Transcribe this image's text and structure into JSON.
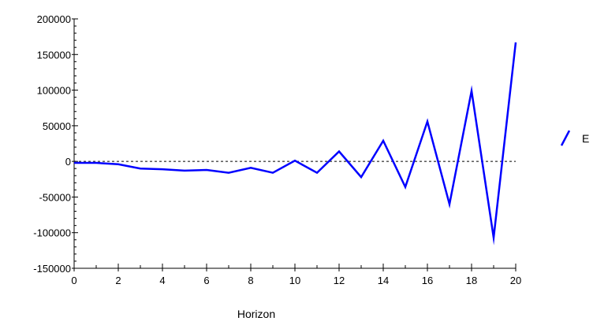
{
  "chart_data": {
    "type": "line",
    "title": "",
    "xlabel": "Horizon",
    "ylabel": "",
    "xlim": [
      0,
      20
    ],
    "ylim": [
      -150000,
      200000
    ],
    "x_ticks": [
      0,
      2,
      4,
      6,
      8,
      10,
      12,
      14,
      16,
      18,
      20
    ],
    "y_ticks": [
      200000,
      150000,
      100000,
      50000,
      0,
      -50000,
      -100000,
      -150000
    ],
    "x_minor_step": 1,
    "y_minor_step": 10000,
    "zero_line": true,
    "grid": false,
    "legend_position": "right",
    "series": [
      {
        "name": "E",
        "color": "#0000ff",
        "x": [
          0,
          1,
          2,
          3,
          4,
          5,
          6,
          7,
          8,
          9,
          10,
          11,
          12,
          13,
          14,
          15,
          16,
          17,
          18,
          19,
          20
        ],
        "values": [
          -2000,
          -2000,
          -4000,
          -10000,
          -11000,
          -13000,
          -12000,
          -16000,
          -9000,
          -16000,
          1000,
          -16000,
          14000,
          -22000,
          29000,
          -36000,
          56000,
          -60000,
          99000,
          -107000,
          167000
        ]
      }
    ]
  }
}
